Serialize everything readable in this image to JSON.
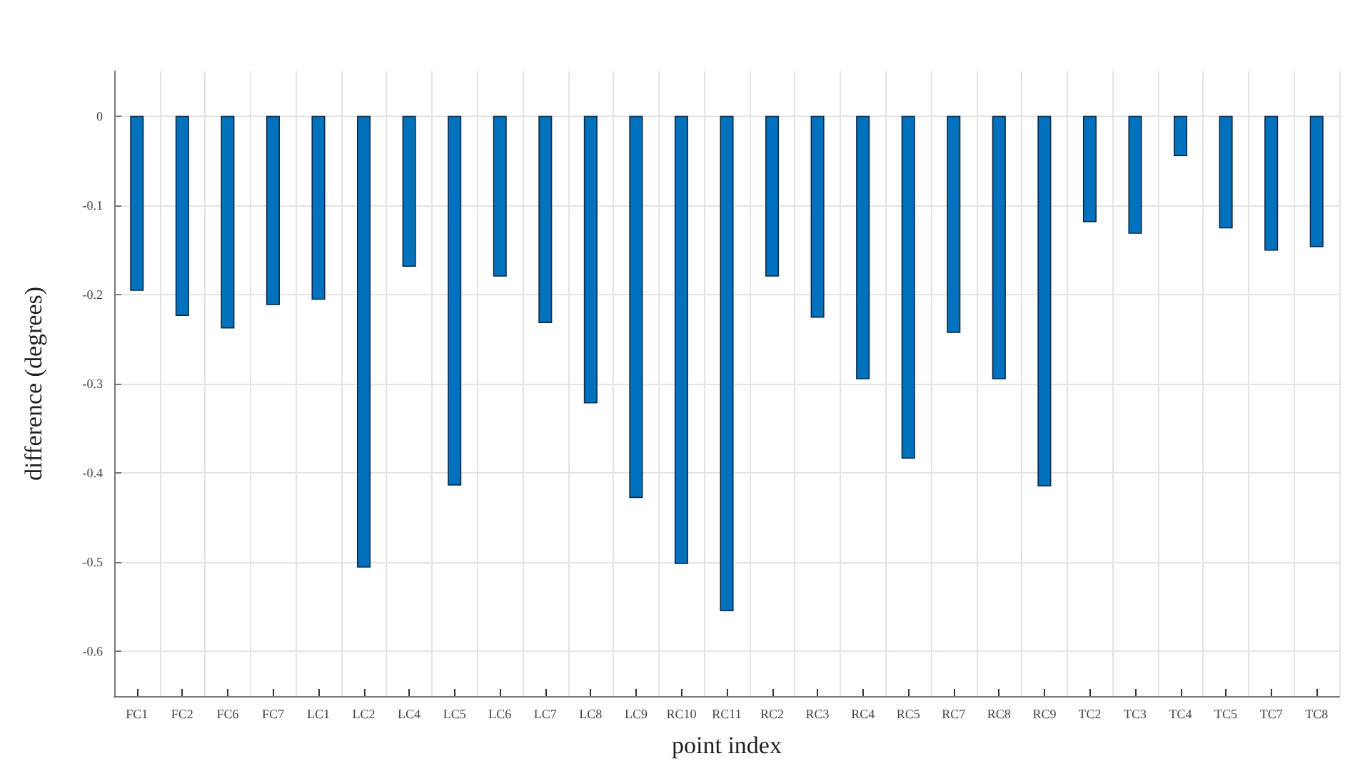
{
  "chart_data": {
    "type": "bar",
    "xlabel": "point index",
    "ylabel": "difference (degrees)",
    "categories": [
      "FC1",
      "FC2",
      "FC6",
      "FC7",
      "LC1",
      "LC2",
      "LC4",
      "LC5",
      "LC6",
      "LC7",
      "LC8",
      "LC9",
      "RC10",
      "RC11",
      "RC2",
      "RC3",
      "RC4",
      "RC5",
      "RC7",
      "RC8",
      "RC9",
      "TC2",
      "TC3",
      "TC4",
      "TC5",
      "TC7",
      "TC8"
    ],
    "values": [
      -0.196,
      -0.224,
      -0.238,
      -0.212,
      -0.206,
      -0.506,
      -0.169,
      -0.414,
      -0.18,
      -0.232,
      -0.322,
      -0.428,
      -0.502,
      -0.555,
      -0.18,
      -0.226,
      -0.295,
      -0.384,
      -0.243,
      -0.295,
      -0.415,
      -0.119,
      -0.132,
      -0.045,
      -0.126,
      -0.151,
      -0.147
    ],
    "color": "#0072bd",
    "ylim": [
      -0.65,
      0.05
    ],
    "yticks": [
      -0.6,
      -0.5,
      -0.4,
      -0.3,
      -0.2,
      -0.1,
      0
    ],
    "grid": true
  }
}
